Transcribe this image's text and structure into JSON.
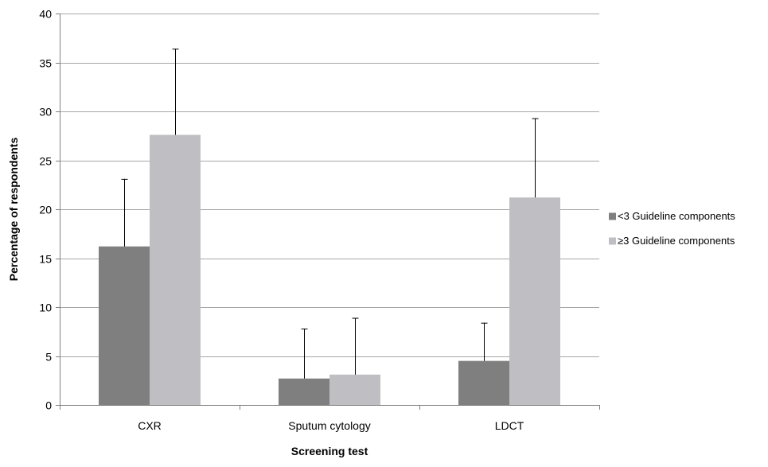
{
  "chart_data": {
    "type": "bar",
    "title": "",
    "xlabel": "Screening test",
    "ylabel": "Percentage of respondents",
    "categories": [
      "CXR",
      "Sputum cytology",
      "LDCT"
    ],
    "series": [
      {
        "name": "<3 Guideline components",
        "color": "#7f7f7f",
        "values": [
          16.2,
          2.7,
          4.5
        ],
        "error_upper": [
          23.1,
          7.8,
          8.4
        ]
      },
      {
        "name": "≥3 Guideline components",
        "color": "#bfbfc3",
        "values": [
          27.6,
          3.1,
          21.2
        ],
        "error_upper": [
          36.4,
          8.9,
          29.3
        ]
      }
    ],
    "ylim": [
      0,
      40
    ],
    "yticks": [
      "0",
      "5",
      "10",
      "15",
      "20",
      "25",
      "30",
      "35",
      "40"
    ],
    "grid": true,
    "legend_position": "right"
  }
}
